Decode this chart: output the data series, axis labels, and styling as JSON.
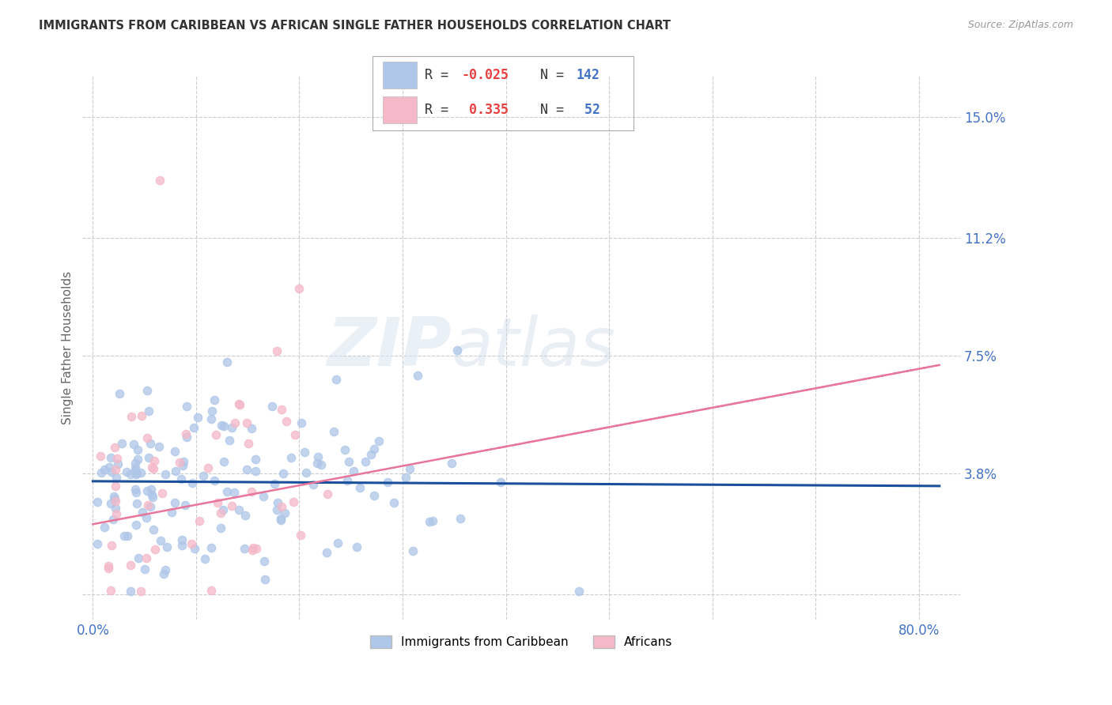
{
  "title": "IMMIGRANTS FROM CARIBBEAN VS AFRICAN SINGLE FATHER HOUSEHOLDS CORRELATION CHART",
  "source": "Source: ZipAtlas.com",
  "ylabel": "Single Father Households",
  "x_ticks": [
    0.0,
    0.1,
    0.2,
    0.3,
    0.4,
    0.5,
    0.6,
    0.7,
    0.8
  ],
  "x_tick_labels": [
    "0.0%",
    "",
    "",
    "",
    "",
    "",
    "",
    "",
    "80.0%"
  ],
  "y_ticks": [
    0.0,
    0.038,
    0.075,
    0.112,
    0.15
  ],
  "y_tick_labels": [
    "",
    "3.8%",
    "7.5%",
    "11.2%",
    "15.0%"
  ],
  "xlim": [
    -0.01,
    0.84
  ],
  "ylim": [
    -0.008,
    0.163
  ],
  "legend1_color": "#aec6e8",
  "legend2_color": "#f4b8c8",
  "trendline1_color": "#1a4f9c",
  "trendline2_color": "#e8759a",
  "grid_color": "#cccccc",
  "watermark_zip": "ZIP",
  "watermark_atlas": "atlas",
  "scatter_alpha": 0.75,
  "scatter_size": 55,
  "fig_bg": "#ffffff",
  "title_color": "#333333",
  "axis_label_color": "#666666",
  "tick_color": "#4472c4",
  "legend_R_color": "#e84040",
  "legend_N_color": "#4472c4",
  "legend_text_color": "#333333",
  "trendline1_x0": 0.0,
  "trendline1_x1": 0.82,
  "trendline1_y0": 0.0355,
  "trendline1_y1": 0.034,
  "trendline2_x0": 0.0,
  "trendline2_x1": 0.82,
  "trendline2_y0": 0.022,
  "trendline2_y1": 0.072
}
